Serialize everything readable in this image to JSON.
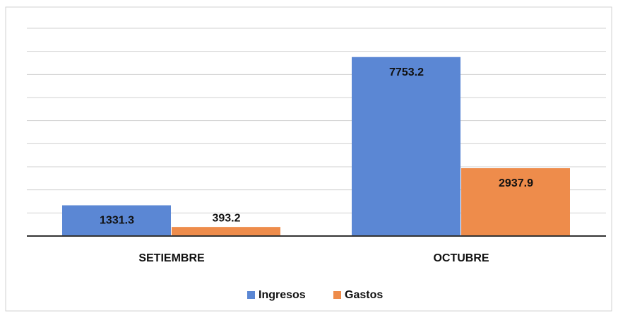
{
  "chart_data": {
    "type": "bar",
    "categories": [
      "SETIEMBRE",
      "OCTUBRE"
    ],
    "series": [
      {
        "name": "Ingresos",
        "color": "#5b87d4",
        "values": [
          1331.3,
          7753.2
        ]
      },
      {
        "name": "Gastos",
        "color": "#ee8c4b",
        "values": [
          393.2,
          2937.9
        ]
      }
    ],
    "ylim": [
      0,
      9000
    ],
    "yticks": [
      0,
      1000,
      2000,
      3000,
      4000,
      5000,
      6000,
      7000,
      8000,
      9000
    ],
    "grid": true
  }
}
